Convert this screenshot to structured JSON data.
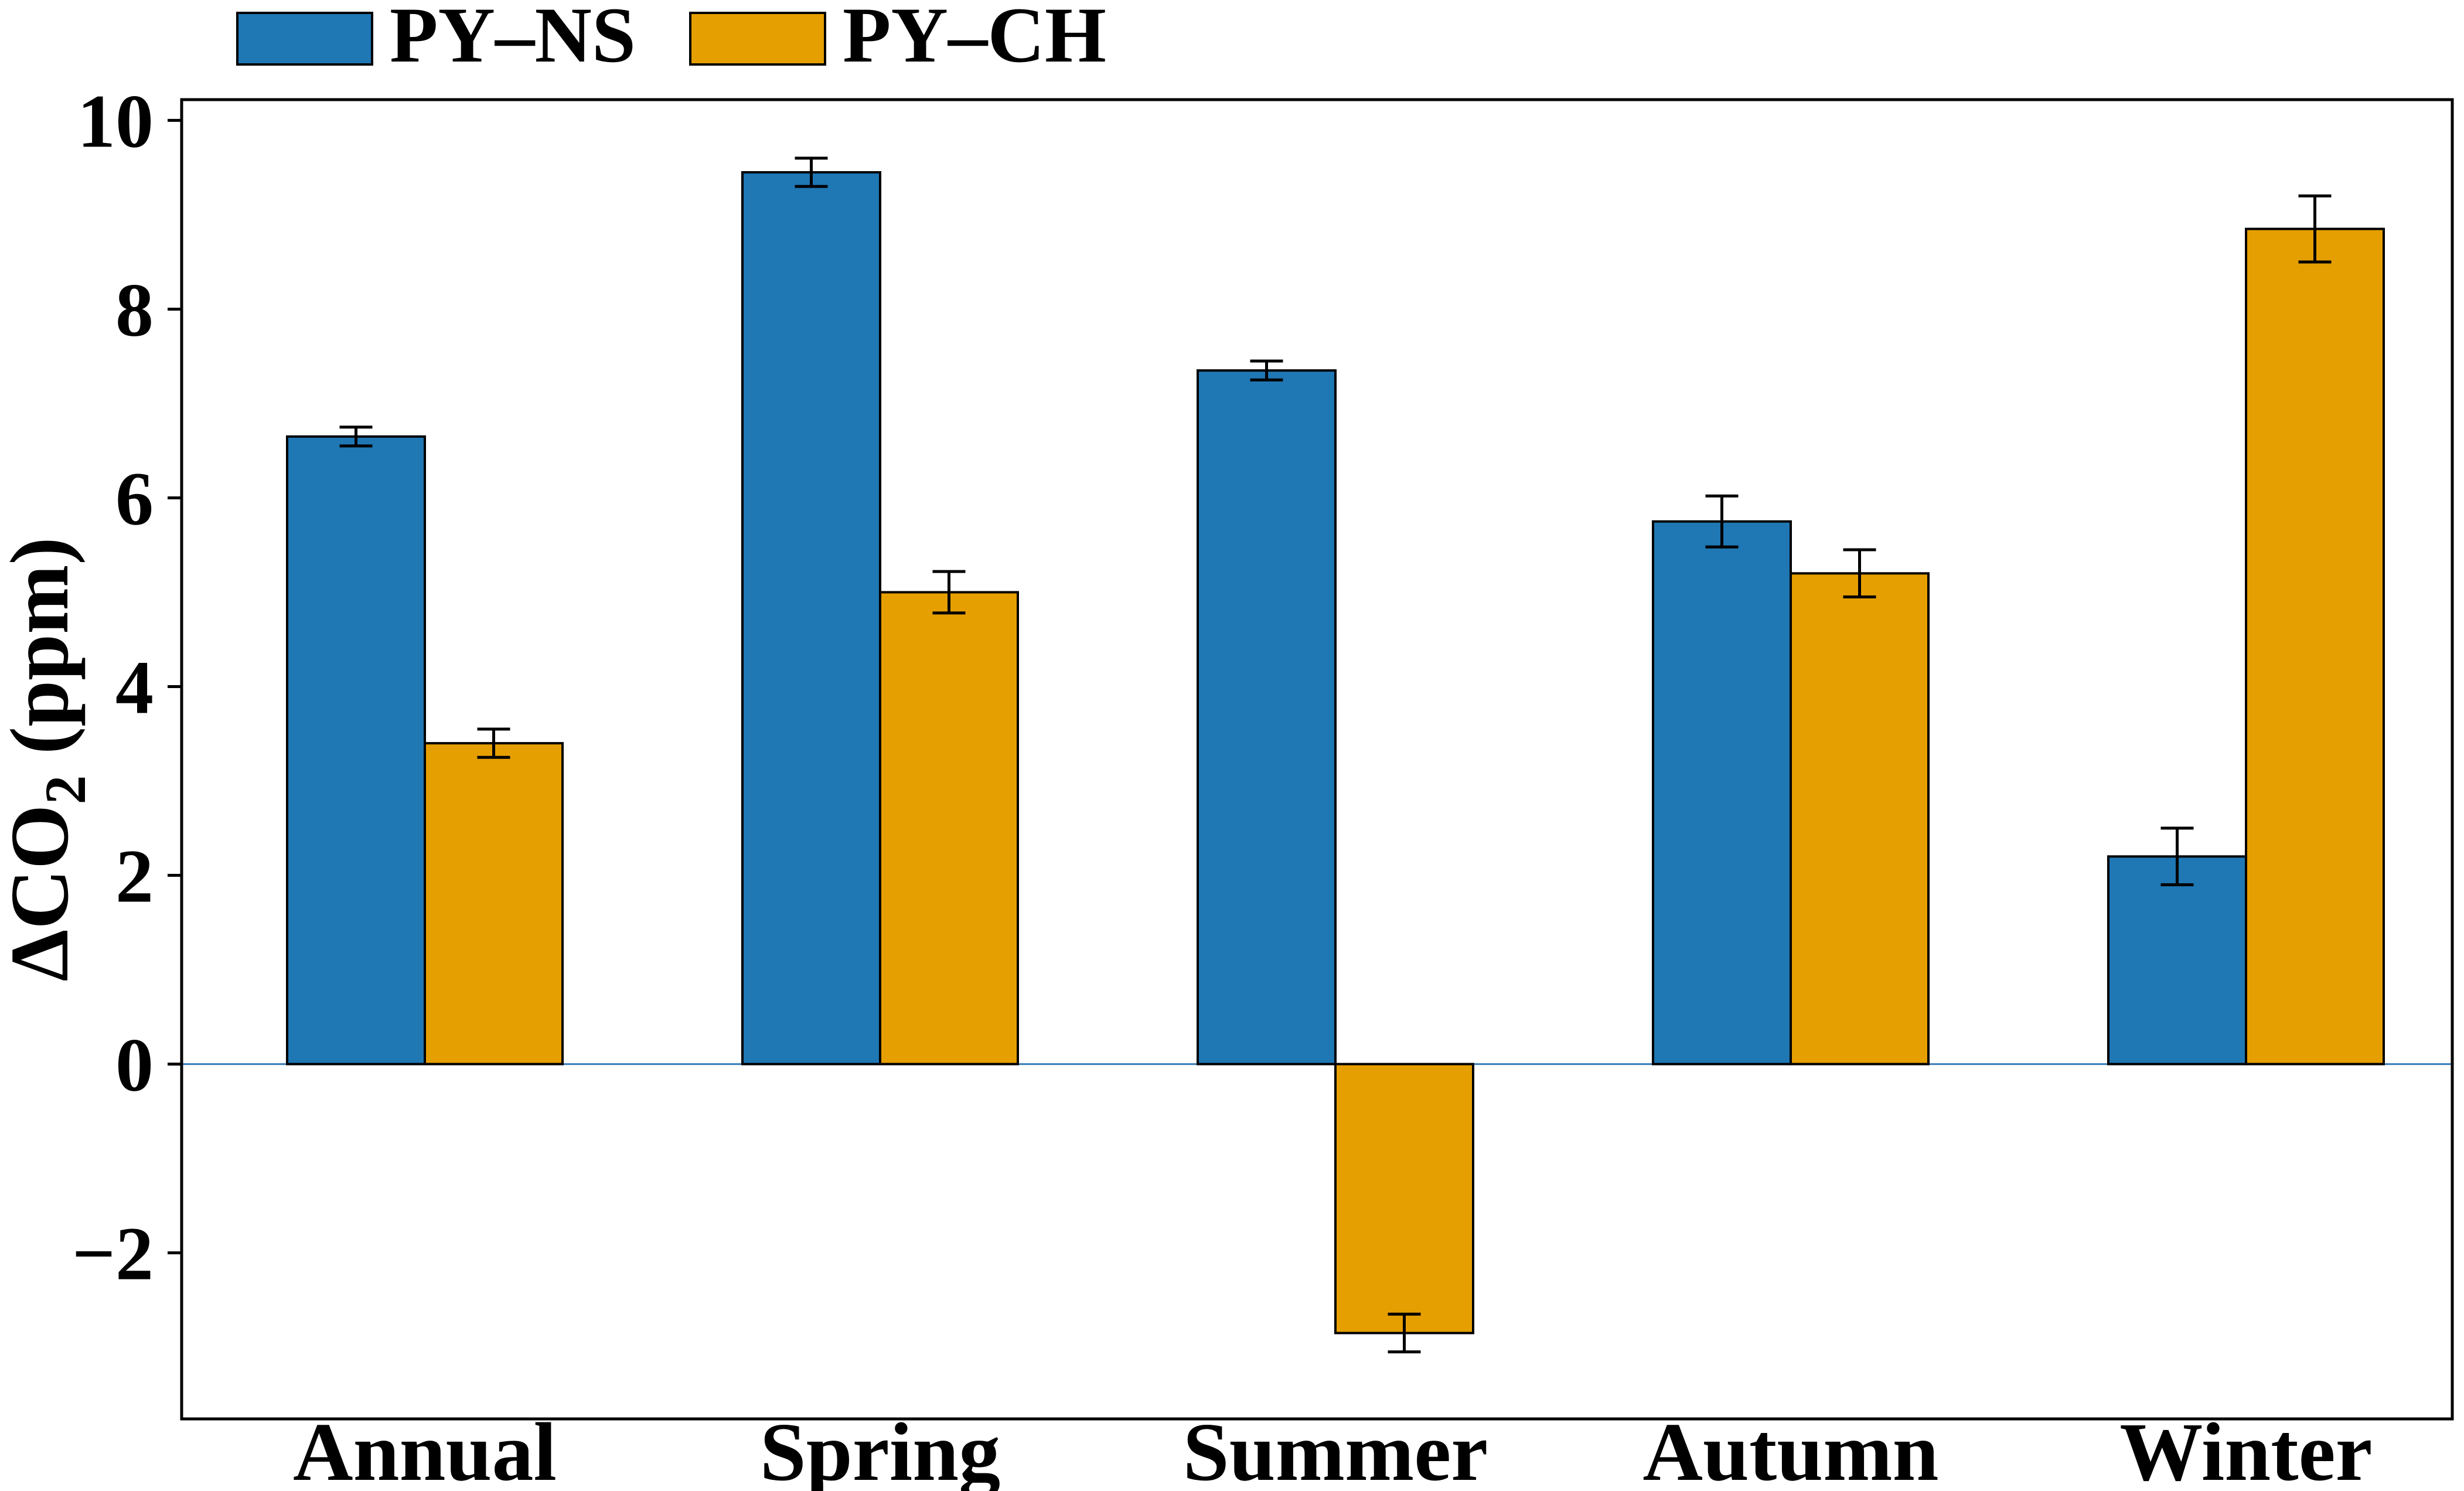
{
  "chart_data": {
    "type": "bar",
    "title": "",
    "xlabel": "",
    "ylabel": "ΔCO₂ (ppm)",
    "categories": [
      "Annual",
      "Spring",
      "Summer",
      "Autumn",
      "Winter"
    ],
    "series": [
      {
        "name": "PY–NS",
        "color": "#1f77b4",
        "values": [
          6.65,
          9.45,
          7.35,
          5.75,
          2.2
        ],
        "errors": [
          0.1,
          0.15,
          0.1,
          0.27,
          0.3
        ]
      },
      {
        "name": "PY–CH",
        "color": "#e69f00",
        "values": [
          3.4,
          5.0,
          -2.85,
          5.2,
          8.85
        ],
        "errors": [
          0.15,
          0.22,
          0.2,
          0.25,
          0.35
        ]
      }
    ],
    "yticks": [
      -2,
      0,
      2,
      4,
      6,
      8,
      10
    ],
    "ylim": [
      -3.76,
      10.22
    ],
    "grid": false,
    "legend_position": "top-left-outside",
    "zero_line": true,
    "zero_line_color": "#3a7cb8",
    "bar_edge_color": "#000000",
    "error_bar_color": "#000000"
  }
}
